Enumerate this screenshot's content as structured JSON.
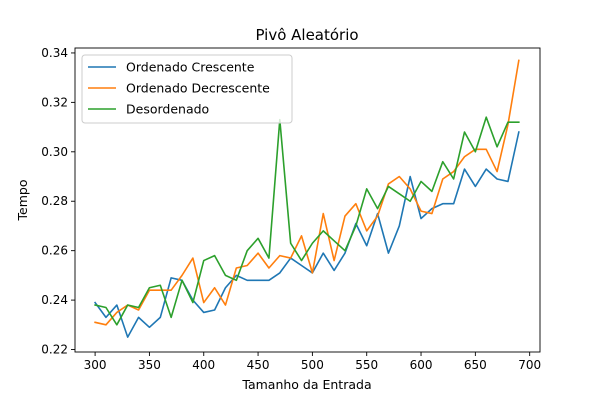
{
  "chart_data": {
    "type": "line",
    "title": "Pivô Aleatório",
    "xlabel": "Tamanho da Entrada",
    "ylabel": "Tempo",
    "xlim": [
      281.5,
      709.5
    ],
    "ylim": [
      0.219,
      0.342
    ],
    "xticks": [
      300,
      350,
      400,
      450,
      500,
      550,
      600,
      650,
      700
    ],
    "yticks": [
      0.22,
      0.24,
      0.26,
      0.28,
      0.3,
      0.32,
      0.34
    ],
    "xtick_labels": [
      "300",
      "350",
      "400",
      "450",
      "500",
      "550",
      "600",
      "650",
      "700"
    ],
    "ytick_labels": [
      "0.22",
      "0.24",
      "0.26",
      "0.28",
      "0.30",
      "0.32",
      "0.34"
    ],
    "grid": false,
    "legend_position": "top-left",
    "x": [
      300,
      310,
      320,
      330,
      340,
      350,
      360,
      370,
      380,
      390,
      400,
      410,
      420,
      430,
      440,
      450,
      460,
      470,
      480,
      490,
      500,
      510,
      520,
      530,
      540,
      550,
      560,
      570,
      580,
      590,
      600,
      610,
      620,
      630,
      640,
      650,
      660,
      670,
      680,
      690
    ],
    "series": [
      {
        "name": "Ordenado Crescente",
        "color": "#1f77b4",
        "values": [
          0.239,
          0.233,
          0.238,
          0.225,
          0.233,
          0.229,
          0.233,
          0.249,
          0.248,
          0.24,
          0.235,
          0.236,
          0.245,
          0.25,
          0.248,
          0.248,
          0.248,
          0.251,
          0.257,
          0.254,
          0.251,
          0.259,
          0.252,
          0.259,
          0.271,
          0.262,
          0.275,
          0.259,
          0.27,
          0.29,
          0.273,
          0.277,
          0.279,
          0.279,
          0.293,
          0.286,
          0.293,
          0.289,
          0.288,
          0.308
        ]
      },
      {
        "name": "Ordenado Decrescente",
        "color": "#ff7f0e",
        "values": [
          0.231,
          0.23,
          0.235,
          0.238,
          0.236,
          0.244,
          0.244,
          0.244,
          0.25,
          0.257,
          0.239,
          0.245,
          0.238,
          0.253,
          0.254,
          0.259,
          0.253,
          0.258,
          0.257,
          0.266,
          0.251,
          0.275,
          0.256,
          0.274,
          0.279,
          0.268,
          0.274,
          0.287,
          0.29,
          0.285,
          0.276,
          0.275,
          0.289,
          0.292,
          0.298,
          0.301,
          0.301,
          0.292,
          0.311,
          0.337
        ]
      },
      {
        "name": "Desordenado",
        "color": "#2ca02c",
        "values": [
          0.238,
          0.237,
          0.23,
          0.238,
          0.237,
          0.245,
          0.246,
          0.233,
          0.248,
          0.239,
          0.256,
          0.258,
          0.25,
          0.248,
          0.26,
          0.265,
          0.257,
          0.313,
          0.263,
          0.256,
          0.263,
          0.268,
          0.264,
          0.26,
          0.27,
          0.285,
          0.277,
          0.286,
          0.283,
          0.28,
          0.288,
          0.284,
          0.296,
          0.289,
          0.308,
          0.3,
          0.314,
          0.302,
          0.312,
          0.312
        ]
      }
    ]
  }
}
